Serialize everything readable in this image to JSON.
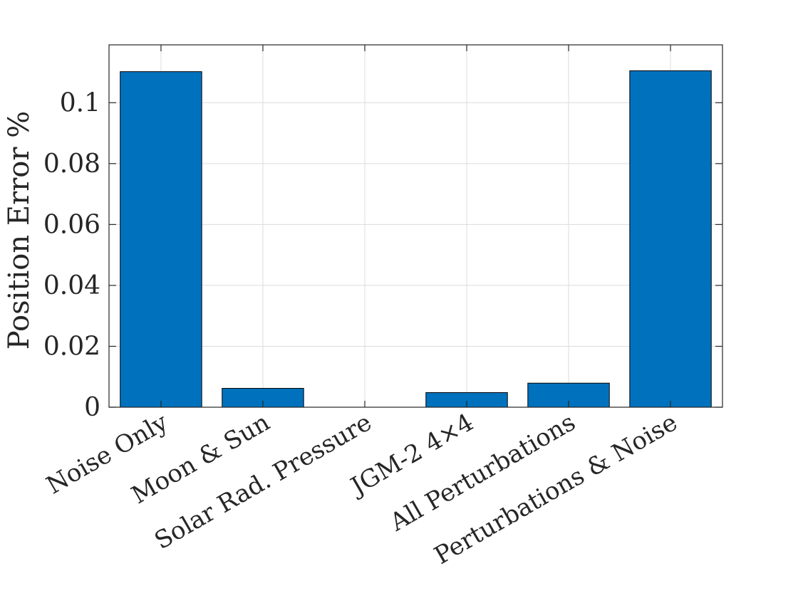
{
  "chart_data": {
    "type": "bar",
    "categories": [
      "Noise Only",
      "Moon & Sun",
      "Solar Rad. Pressure",
      "JGM-2 4×4",
      "All Perturbations",
      "Perturbations & Noise"
    ],
    "values": [
      0.1102,
      0.0062,
      0.0,
      0.0048,
      0.0079,
      0.1105
    ],
    "ylabel": "Position Error %",
    "xlabel": "",
    "ylim": [
      0,
      0.119
    ],
    "yticks": [
      0,
      0.02,
      0.04,
      0.06,
      0.08,
      0.1
    ],
    "ytick_labels": [
      "0",
      "0.02",
      "0.04",
      "0.06",
      "0.08",
      "0.1"
    ],
    "grid": true,
    "bar_color": "#0072BD",
    "bar_edge_color": "#000000"
  }
}
